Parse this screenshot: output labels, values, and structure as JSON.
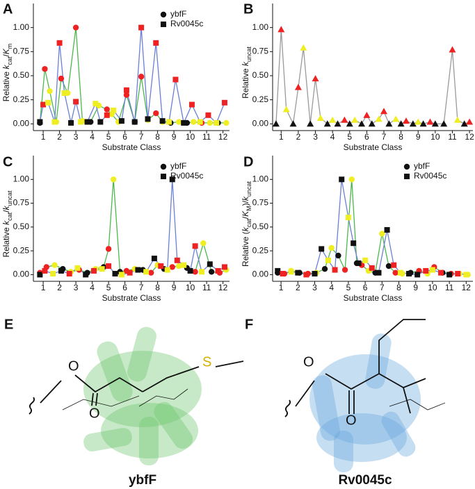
{
  "chart_data": [
    {
      "type": "line",
      "panel": "A",
      "xlabel": "Substrate Class",
      "ylabel": [
        {
          "text": "Relative "
        },
        {
          "text": "k",
          "italic": true
        },
        {
          "text": "cat",
          "sub": true
        },
        {
          "text": "/"
        },
        {
          "text": "K",
          "italic": true
        },
        {
          "text": "m",
          "sub": true
        }
      ],
      "xlim": [
        0.4,
        12.4
      ],
      "xticks": [
        1,
        2,
        3,
        4,
        5,
        6,
        7,
        8,
        9,
        10,
        11,
        12
      ],
      "ylim": [
        -0.07,
        1.25
      ],
      "yticks": [
        {
          "value": 0,
          "label": "0.00"
        },
        {
          "value": 0.25,
          "label": "0.25"
        },
        {
          "value": 0.5,
          "label": "0.50"
        },
        {
          "value": 0.75,
          "label": "0.75"
        },
        {
          "value": 1,
          "label": "1.00"
        }
      ],
      "legend": "upper right",
      "series": [
        {
          "name": "ybfF",
          "marker": "circle",
          "color": "#4cb84c",
          "x": [
            0.8,
            1.1,
            1.4,
            1.8,
            2.1,
            2.5,
            3.0,
            3.4,
            3.9,
            4.4,
            4.9,
            5.2,
            5.6,
            6.1,
            6.6,
            7.0,
            7.4,
            7.9,
            8.3,
            8.8,
            9.3,
            9.8,
            10.2,
            10.7,
            11.2,
            11.7,
            12.2
          ],
          "values": [
            0.01,
            0.57,
            0.34,
            0.02,
            0.47,
            0.32,
            1.0,
            0.03,
            0.02,
            0.19,
            0.15,
            0.1,
            0.02,
            0.3,
            0.02,
            0.49,
            0.04,
            0.11,
            0.02,
            0.01,
            0.02,
            0.01,
            0.02,
            0.01,
            0.01,
            0.01,
            0.01
          ],
          "point_colors": [
            "#111",
            "#e22",
            "#ee2",
            "#ee2",
            "#e22",
            "#ee2",
            "#e22",
            "#ee2",
            "#111",
            "#ee2",
            "#e22",
            "#ee2",
            "#ee2",
            "#e22",
            "#111",
            "#e22",
            "#ee2",
            "#e22",
            "#ee2",
            "#111",
            "#ee2",
            "#111",
            "#ee2",
            "#e22",
            "#ee2",
            "#111",
            "#ee2"
          ]
        },
        {
          "name": "Rv0045c",
          "marker": "square",
          "color": "#6a7fd6",
          "x": [
            0.8,
            1.0,
            1.3,
            1.7,
            2.0,
            2.3,
            2.7,
            3.0,
            3.3,
            3.7,
            4.2,
            4.5,
            4.9,
            5.3,
            5.8,
            6.1,
            6.6,
            7.0,
            7.4,
            7.9,
            8.3,
            8.7,
            9.1,
            9.6,
            10.1,
            10.6,
            11.1,
            11.6,
            12.1
          ],
          "values": [
            0.02,
            0.2,
            0.22,
            0.02,
            0.84,
            0.32,
            0.01,
            0.23,
            0.02,
            0.02,
            0.21,
            0.02,
            0.09,
            0.14,
            0.03,
            0.35,
            0.02,
            1.0,
            0.05,
            0.84,
            0.03,
            0.02,
            0.46,
            0.01,
            0.2,
            0.02,
            0.09,
            0.01,
            0.22
          ],
          "point_colors": [
            "#111",
            "#e22",
            "#ee2",
            "#ee2",
            "#e22",
            "#ee2",
            "#111",
            "#e22",
            "#ee2",
            "#111",
            "#ee2",
            "#111",
            "#e22",
            "#ee2",
            "#111",
            "#e22",
            "#111",
            "#e22",
            "#111",
            "#e22",
            "#111",
            "#ee2",
            "#e22",
            "#111",
            "#e22",
            "#ee2",
            "#e22",
            "#ee2",
            "#e22"
          ]
        }
      ]
    },
    {
      "type": "line",
      "panel": "B",
      "xlabel": "Substrate Class",
      "ylabel": [
        {
          "text": "Relative "
        },
        {
          "text": "k",
          "italic": true
        },
        {
          "text": "uncat",
          "sub": true
        }
      ],
      "xlim": [
        0.5,
        12.2
      ],
      "xticks": [
        1,
        2,
        3,
        4,
        5,
        6,
        7,
        8,
        9,
        10,
        11,
        12
      ],
      "ylim": [
        -0.07,
        1.25
      ],
      "yticks": [
        {
          "value": 0,
          "label": "0.00"
        },
        {
          "value": 0.25,
          "label": "0.25"
        },
        {
          "value": 0.5,
          "label": "0.50"
        },
        {
          "value": 0.75,
          "label": "0.75"
        },
        {
          "value": 1,
          "label": "1.00"
        }
      ],
      "series": [
        {
          "marker": "triangle",
          "color": "#9a9a9a",
          "x": [
            0.7,
            1.0,
            1.3,
            1.7,
            2.0,
            2.3,
            2.7,
            3.0,
            3.3,
            3.7,
            4.0,
            4.3,
            4.7,
            5.0,
            5.3,
            5.7,
            6.0,
            6.3,
            6.7,
            7.0,
            7.3,
            7.7,
            8.0,
            8.3,
            8.7,
            9.0,
            9.3,
            9.7,
            10.0,
            10.5,
            11.0,
            11.3,
            11.7,
            12.0
          ],
          "values": [
            0.0,
            0.98,
            0.15,
            0.0,
            0.38,
            0.79,
            0.0,
            0.47,
            0.06,
            0.0,
            0.04,
            0.0,
            0.04,
            0.0,
            0.04,
            0.0,
            0.09,
            0.0,
            0.05,
            0.13,
            0.0,
            0.05,
            0.0,
            0.03,
            0.0,
            0.02,
            0.0,
            0.02,
            0.0,
            0.0,
            0.77,
            0.04,
            0.0,
            0.02
          ],
          "point_colors": [
            "#111",
            "#e22",
            "#ee2",
            "#111",
            "#e22",
            "#ee2",
            "#111",
            "#e22",
            "#ee2",
            "#111",
            "#ee2",
            "#111",
            "#e22",
            "#111",
            "#ee2",
            "#111",
            "#e22",
            "#111",
            "#ee2",
            "#e22",
            "#111",
            "#ee2",
            "#111",
            "#e22",
            "#111",
            "#ee2",
            "#111",
            "#e22",
            "#111",
            "#111",
            "#e22",
            "#ee2",
            "#111",
            "#e22"
          ]
        }
      ]
    },
    {
      "type": "line",
      "panel": "C",
      "xlabel": "Substrate Class",
      "ylabel": [
        {
          "text": "Relative "
        },
        {
          "text": "k",
          "italic": true
        },
        {
          "text": "cat",
          "sub": true
        },
        {
          "text": "/"
        },
        {
          "text": "k",
          "italic": true
        },
        {
          "text": "uncat",
          "sub": true
        }
      ],
      "xlim": [
        0.4,
        12.4
      ],
      "xticks": [
        1,
        2,
        3,
        4,
        5,
        6,
        7,
        8,
        9,
        10,
        11,
        12
      ],
      "ylim": [
        -0.07,
        1.25
      ],
      "yticks": [
        {
          "value": 0,
          "label": "0.00"
        },
        {
          "value": 0.25,
          "label": "0.25"
        },
        {
          "value": 0.5,
          "label": "0.50"
        },
        {
          "value": 0.75,
          "label": "0.75"
        },
        {
          "value": 1,
          "label": "1.00"
        }
      ],
      "legend": "upper right",
      "series": [
        {
          "name": "ybfF",
          "marker": "circle",
          "color": "#4cb84c",
          "x": [
            0.8,
            1.2,
            1.7,
            2.2,
            2.7,
            3.2,
            3.7,
            4.2,
            4.7,
            5.0,
            5.3,
            5.7,
            6.1,
            6.6,
            7.1,
            7.6,
            8.0,
            8.4,
            8.9,
            9.3,
            9.8,
            10.3,
            10.8,
            11.3,
            11.8,
            12.2
          ],
          "values": [
            0.02,
            0.08,
            0.1,
            0.06,
            0.03,
            0.05,
            0.02,
            0.06,
            0.08,
            0.27,
            1.0,
            0.03,
            0.04,
            0.06,
            0.05,
            0.02,
            0.1,
            0.06,
            0.08,
            0.09,
            0.07,
            0.03,
            0.33,
            0.03,
            0.02,
            0.05
          ],
          "point_colors": [
            "#e22",
            "#e22",
            "#ee2",
            "#111",
            "#ee2",
            "#e22",
            "#111",
            "#ee2",
            "#111",
            "#e22",
            "#ee2",
            "#111",
            "#e22",
            "#ee2",
            "#111",
            "#e22",
            "#ee2",
            "#111",
            "#e22",
            "#ee2",
            "#111",
            "#e22",
            "#ee2",
            "#111",
            "#e22",
            "#ee2"
          ]
        },
        {
          "name": "Rv0045c",
          "marker": "square",
          "color": "#6a7fd6",
          "x": [
            0.8,
            1.1,
            1.6,
            2.1,
            2.6,
            3.1,
            3.6,
            4.1,
            4.6,
            5.0,
            5.4,
            5.8,
            6.3,
            6.8,
            7.3,
            7.8,
            8.2,
            8.6,
            8.9,
            9.2,
            9.6,
            10.0,
            10.3,
            10.7,
            11.2,
            11.7,
            12.1
          ],
          "values": [
            0.0,
            0.04,
            0.01,
            0.04,
            0.01,
            0.07,
            0.0,
            0.04,
            0.06,
            0.09,
            0.01,
            0.0,
            0.02,
            0.05,
            0.03,
            0.17,
            0.09,
            0.05,
            1.0,
            0.15,
            0.1,
            0.04,
            0.3,
            0.03,
            0.11,
            0.04,
            0.08
          ],
          "point_colors": [
            "#111",
            "#e22",
            "#ee2",
            "#111",
            "#e22",
            "#ee2",
            "#111",
            "#e22",
            "#ee2",
            "#e22",
            "#111",
            "#ee2",
            "#e22",
            "#111",
            "#ee2",
            "#111",
            "#e22",
            "#ee2",
            "#111",
            "#e22",
            "#ee2",
            "#111",
            "#e22",
            "#ee2",
            "#111",
            "#e22",
            "#e22"
          ]
        }
      ]
    },
    {
      "type": "line",
      "panel": "D",
      "xlabel": "Substrate Class",
      "ylabel": [
        {
          "text": "Relative ("
        },
        {
          "text": "k",
          "italic": true
        },
        {
          "text": "cat",
          "sub": true
        },
        {
          "text": "/"
        },
        {
          "text": "K",
          "italic": true
        },
        {
          "text": "M",
          "sub": true
        },
        {
          "text": ")/"
        },
        {
          "text": "k",
          "italic": true
        },
        {
          "text": "uncat",
          "sub": true
        }
      ],
      "xlim": [
        0.5,
        12.4
      ],
      "xticks": [
        1,
        2,
        3,
        4,
        5,
        6,
        7,
        8,
        9,
        10,
        11,
        12
      ],
      "ylim": [
        -0.07,
        1.25
      ],
      "yticks": [
        {
          "value": 0,
          "label": "0.00"
        },
        {
          "value": 0.25,
          "label": "0.25"
        },
        {
          "value": 0.5,
          "label": "0.50"
        },
        {
          "value": 0.75,
          "label": "0.75"
        },
        {
          "value": 1,
          "label": "1.00"
        }
      ],
      "legend": "upper right",
      "series": [
        {
          "name": "ybfF",
          "marker": "circle",
          "color": "#4cb84c",
          "x": [
            0.8,
            1.2,
            1.6,
            2.1,
            2.6,
            3.1,
            3.6,
            4.0,
            4.4,
            4.8,
            5.2,
            5.5,
            5.8,
            6.2,
            6.6,
            7.0,
            7.4,
            7.8,
            8.2,
            8.7,
            9.2,
            9.7,
            10.1,
            10.6,
            11.1,
            11.6,
            12.1
          ],
          "values": [
            0.02,
            0.01,
            0.04,
            0.02,
            0.01,
            0.02,
            0.06,
            0.28,
            0.2,
            0.05,
            1.0,
            0.12,
            0.1,
            0.04,
            0.02,
            0.43,
            0.09,
            0.02,
            0.01,
            0.02,
            0.04,
            0.01,
            0.08,
            0.02,
            0.01,
            0.01,
            0.0
          ],
          "point_colors": [
            "#111",
            "#e22",
            "#ee2",
            "#111",
            "#e22",
            "#ee2",
            "#111",
            "#ee2",
            "#111",
            "#e22",
            "#ee2",
            "#111",
            "#e22",
            "#ee2",
            "#111",
            "#ee2",
            "#111",
            "#e22",
            "#ee2",
            "#111",
            "#e22",
            "#ee2",
            "#e22",
            "#111",
            "#e22",
            "#ee2",
            "#ee2"
          ]
        },
        {
          "name": "Rv0045c",
          "marker": "square",
          "color": "#6a7fd6",
          "x": [
            0.8,
            1.1,
            1.6,
            2.0,
            2.5,
            3.0,
            3.4,
            3.8,
            4.2,
            4.6,
            5.0,
            5.3,
            5.6,
            6.0,
            6.4,
            6.8,
            7.3,
            7.7,
            8.1,
            8.6,
            9.1,
            9.6,
            10.0,
            10.5,
            11.0,
            11.5,
            12.0
          ],
          "values": [
            0.04,
            0.01,
            0.03,
            0.02,
            0.0,
            0.01,
            0.27,
            0.15,
            0.05,
            1.0,
            0.6,
            0.33,
            0.12,
            0.15,
            0.07,
            0.02,
            0.47,
            0.1,
            0.02,
            0.01,
            0.0,
            0.04,
            0.05,
            0.02,
            0.0,
            0.01,
            0.0
          ],
          "point_colors": [
            "#111",
            "#e22",
            "#ee2",
            "#111",
            "#e22",
            "#111",
            "#111",
            "#ee2",
            "#e22",
            "#111",
            "#ee2",
            "#111",
            "#111",
            "#ee2",
            "#e22",
            "#111",
            "#111",
            "#e22",
            "#ee2",
            "#111",
            "#111",
            "#e22",
            "#ee2",
            "#e22",
            "#111",
            "#e22",
            "#ee2"
          ]
        }
      ]
    }
  ],
  "structure_panels": [
    {
      "panel": "E",
      "name": "ybfF",
      "atoms": [
        "O",
        "O",
        "S"
      ]
    },
    {
      "panel": "F",
      "name": "Rv0045c",
      "atoms": [
        "O",
        "O"
      ]
    }
  ]
}
